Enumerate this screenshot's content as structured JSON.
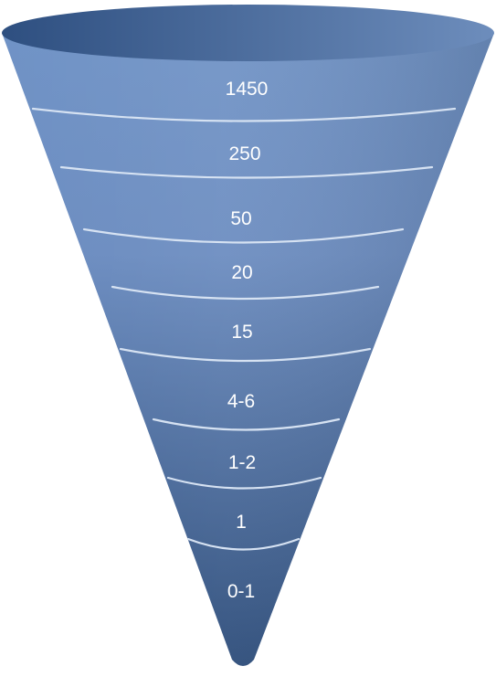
{
  "funnel": {
    "levels": [
      {
        "label": "1450"
      },
      {
        "label": "250"
      },
      {
        "label": "50"
      },
      {
        "label": "20"
      },
      {
        "label": "15"
      },
      {
        "label": "4-6"
      },
      {
        "label": "1-2"
      },
      {
        "label": "1"
      },
      {
        "label": "0-1"
      }
    ],
    "colors": {
      "rim_dark": "#2e4f80",
      "rim_light": "#6d8dbc",
      "body_top": "#7093c6",
      "body_bottom": "#2a4a78",
      "separator": "#d6e2f2",
      "label": "#ffffff"
    }
  }
}
